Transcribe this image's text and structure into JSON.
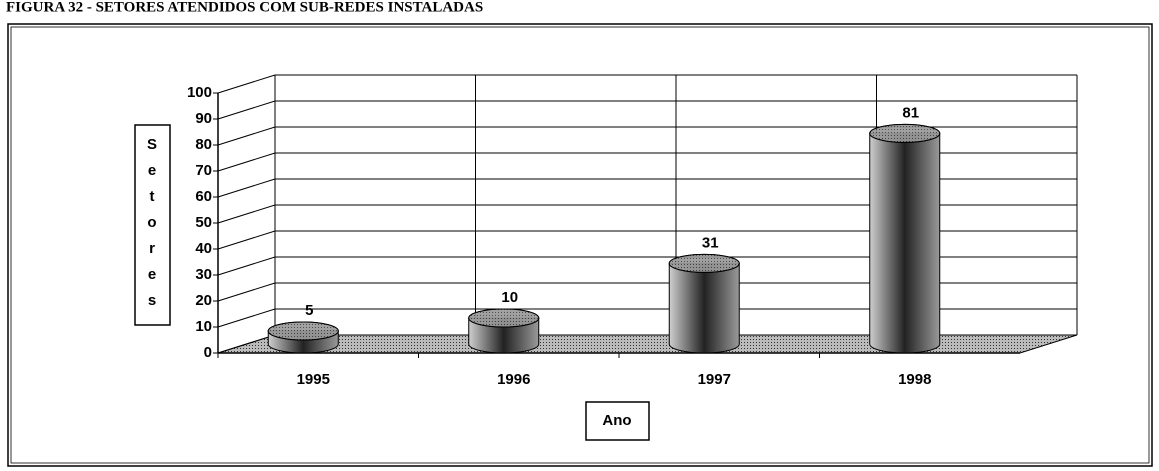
{
  "chart_data": {
    "type": "bar3d",
    "title": "FIGURA 32 - SETORES ATENDIDOS COM SUB-REDES INSTALADAS",
    "categories": [
      "1995",
      "1996",
      "1997",
      "1998"
    ],
    "values": [
      5,
      10,
      31,
      81
    ],
    "color": "#5a5a5a",
    "ylabel": "Setores",
    "xlabel": "Ano",
    "ylim": [
      0,
      100
    ],
    "yticks": [
      0,
      10,
      20,
      30,
      40,
      50,
      60,
      70,
      80,
      90,
      100
    ],
    "grid": true
  }
}
